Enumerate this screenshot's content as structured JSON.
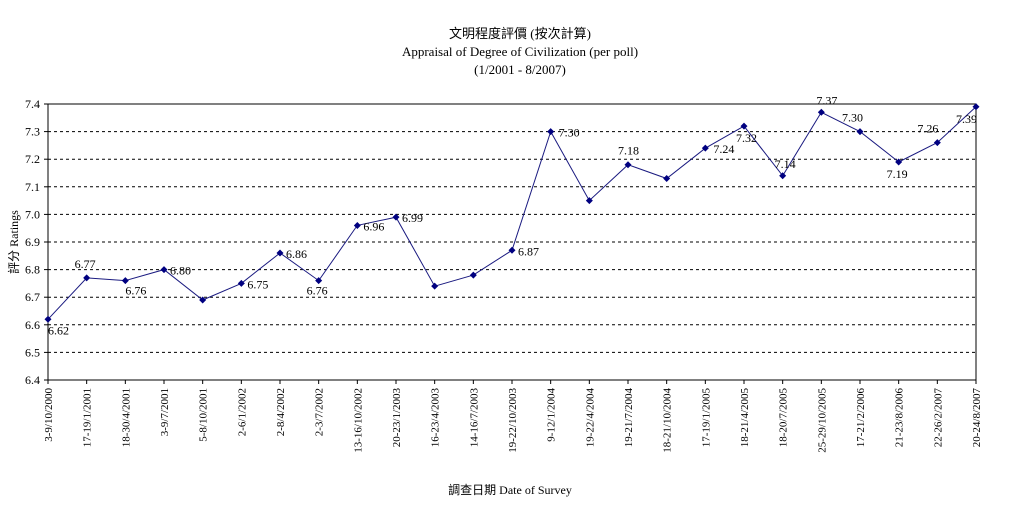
{
  "chart_data": {
    "type": "line",
    "title": [
      "文明程度評價 (按次計算)",
      "Appraisal of Degree of Civilization (per poll)",
      "(1/2001 - 8/2007)"
    ],
    "xlabel": "調查日期 Date of Survey",
    "ylabel": "評分 Ratings",
    "ylim": [
      6.4,
      7.4
    ],
    "y_ticks": [
      "6.4",
      "6.5",
      "6.6",
      "6.7",
      "6.8",
      "6.9",
      "7.0",
      "7.1",
      "7.2",
      "7.3",
      "7.4"
    ],
    "grid": "horizontal dashed",
    "colors": {
      "line": "#1a1a80",
      "marker": "#000080",
      "grid": "#000000"
    },
    "categories": [
      "3-9/10/2000",
      "17-19/1/2001",
      "18-30/4/2001",
      "3-9/7/2001",
      "5-8/10/2001",
      "2-6/1/2002",
      "2-8/4/2002",
      "2-3/7/2002",
      "13-16/10/2002",
      "20-23/1/2003",
      "16-23/4/2003",
      "14-16/7/2003",
      "19-22/10/2003",
      "9-12/1/2004",
      "19-22/4/2004",
      "19-21/7/2004",
      "18-21/10/2004",
      "17-19/1/2005",
      "18-21/4/2005",
      "18-20/7/2005",
      "25-29/10/2005",
      "17-21/2/2006",
      "21-23/8/2006",
      "22-26/2/2007",
      "20-24/8/2007"
    ],
    "values": [
      6.62,
      6.77,
      6.76,
      6.8,
      6.69,
      6.75,
      6.86,
      6.76,
      6.96,
      6.99,
      6.74,
      6.78,
      6.87,
      7.3,
      7.05,
      7.18,
      7.13,
      7.24,
      7.32,
      7.14,
      7.37,
      7.3,
      7.19,
      7.26,
      7.39
    ],
    "data_labels": [
      "6.62",
      "6.77",
      "6.76",
      "6.80",
      "",
      "6.75",
      "6.86",
      "6.76",
      "6.96",
      "6.99",
      "",
      "",
      "6.87",
      "7.30",
      "",
      "7.18",
      "",
      "7.24",
      "7.32",
      "7.14",
      "7.37",
      "7.30",
      "7.19",
      "7.26",
      "7.39"
    ]
  }
}
